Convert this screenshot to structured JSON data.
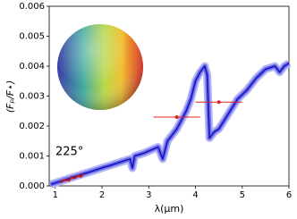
{
  "chart_data": {
    "type": "line",
    "xlabel": "λ(μm)",
    "ylabel": "(Fₚ/F⋆)",
    "annotation": "225°",
    "xlim": [
      0.87,
      6
    ],
    "ylim": [
      0,
      0.006
    ],
    "xticks": [
      1,
      2,
      3,
      4,
      5,
      6
    ],
    "yticks": [
      {
        "value": 0,
        "label": "0.000"
      },
      {
        "value": 0.001,
        "label": "0.001"
      },
      {
        "value": 0.002,
        "label": "0.002"
      },
      {
        "value": 0.003,
        "label": "0.003"
      },
      {
        "value": 0.004,
        "label": "0.004"
      },
      {
        "value": 0.005,
        "label": "0.005"
      },
      {
        "value": 0.006,
        "label": "0.006"
      }
    ],
    "series": [
      {
        "color": "#1010c0",
        "x": [
          0.9,
          1.0,
          1.2,
          1.4,
          1.6,
          1.8,
          2.0,
          2.2,
          2.4,
          2.6,
          2.65,
          2.7,
          2.9,
          3.2,
          3.3,
          3.4,
          3.6,
          3.8,
          3.9,
          4.0,
          4.1,
          4.2,
          4.25,
          4.3,
          4.4,
          4.5,
          4.7,
          4.9,
          5.1,
          5.3,
          5.5,
          5.7,
          5.8,
          5.9,
          6.0
        ],
        "values": [
          5e-05,
          0.0001,
          0.0002,
          0.0003,
          0.0004,
          0.0005,
          0.0006,
          0.0007,
          0.0008,
          0.0009,
          0.0006,
          0.001,
          0.0011,
          0.0013,
          0.0009,
          0.0015,
          0.0019,
          0.0025,
          0.0029,
          0.0035,
          0.0038,
          0.004,
          0.0037,
          0.0016,
          0.0018,
          0.0019,
          0.0024,
          0.0029,
          0.0032,
          0.0036,
          0.0039,
          0.004,
          0.0038,
          0.004,
          0.0041
        ]
      },
      {
        "color": "#c01818",
        "x": [
          1.1,
          1.2,
          1.3,
          1.35,
          1.4,
          1.5,
          1.55,
          1.6
        ],
        "values": [
          0.00012,
          0.0002,
          0.00018,
          0.0003,
          0.00025,
          0.00035,
          0.0003,
          0.0004
        ]
      }
    ],
    "points": [
      {
        "x": 3.6,
        "y": 0.0023,
        "xerr": 0.5,
        "color": "#e02020"
      },
      {
        "x": 4.5,
        "y": 0.0028,
        "xerr": 0.5,
        "color": "#e02020"
      }
    ]
  }
}
